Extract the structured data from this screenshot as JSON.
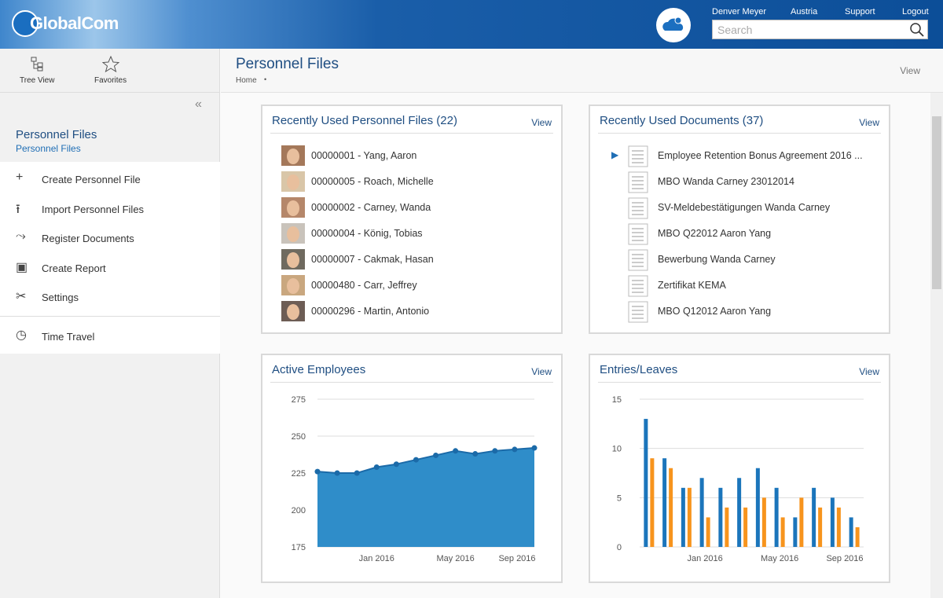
{
  "header": {
    "logo": "GlobalCom",
    "user": "Denver Meyer",
    "country": "Austria",
    "support": "Support",
    "logout": "Logout",
    "search_placeholder": "Search"
  },
  "toolbar": {
    "tree_view": "Tree View",
    "favorites": "Favorites"
  },
  "page": {
    "title": "Personnel Files",
    "breadcrumb": "Home",
    "view": "View"
  },
  "sidebar": {
    "title": "Personnel Files",
    "subtitle": "Personnel Files",
    "menu": [
      "Create Personnel File",
      "Import Personnel Files",
      "Register Documents",
      "Create Report",
      "Settings"
    ],
    "time_travel": "Time Travel"
  },
  "panels": [
    {
      "title": "Recently Used Personnel Files (22)",
      "view": "View",
      "items": [
        "00000001 - Yang, Aaron",
        "00000005 - Roach, Michelle",
        "00000002 - Carney, Wanda",
        "00000004 - König, Tobias",
        "00000007 - Cakmak, Hasan",
        "00000480 - Carr, Jeffrey",
        "00000296 - Martin, Antonio"
      ]
    },
    {
      "title": "Recently Used Documents (37)",
      "view": "View",
      "items": [
        "Employee Retention Bonus Agreement 2016 ...",
        "MBO Wanda Carney 23012014",
        "SV-Meldebestätigungen Wanda Carney",
        "MBO Q22012 Aaron Yang",
        "Bewerbung Wanda Carney",
        "Zertifikat KEMA",
        "MBO Q12012 Aaron Yang"
      ]
    }
  ],
  "charts": [
    {
      "type": "area",
      "title": "Active Employees",
      "view": "View",
      "categories": [
        null,
        null,
        null,
        "Jan 2016",
        null,
        null,
        null,
        "May 2016",
        null,
        null,
        null,
        "Sep 2016"
      ],
      "values": [
        226,
        225,
        225,
        229,
        231,
        234,
        237,
        240,
        238,
        240,
        241,
        242
      ],
      "color": "#2f8dc9",
      "ylim": [
        175,
        275
      ],
      "yticks": [
        175,
        200,
        225,
        250,
        275
      ],
      "grid": true
    },
    {
      "type": "bar",
      "title": "Entries/Leaves",
      "view": "View",
      "categories": [
        null,
        null,
        null,
        "Jan 2016",
        null,
        null,
        null,
        "May 2016",
        null,
        null,
        null,
        "Sep 2016"
      ],
      "series": [
        {
          "color": "#1b75bb",
          "values": [
            13,
            9,
            6,
            7,
            6,
            7,
            8,
            6,
            3,
            6,
            5,
            3
          ]
        },
        {
          "color": "#f7941d",
          "values": [
            9,
            8,
            6,
            3,
            4,
            4,
            5,
            3,
            5,
            4,
            4,
            2
          ]
        }
      ],
      "ylim": [
        0,
        15
      ],
      "yticks": [
        0,
        5,
        10,
        15
      ],
      "grid": true
    }
  ]
}
